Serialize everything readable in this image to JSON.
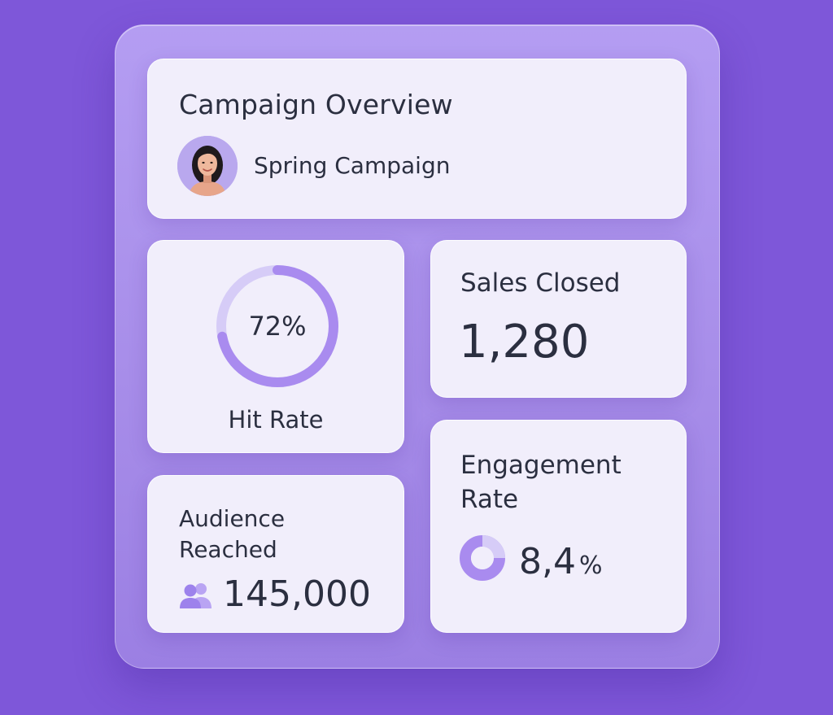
{
  "colors": {
    "background": "#7e57d9",
    "accent": "#a98bef",
    "accent_light": "#d6ccf7",
    "text": "#2b2f40"
  },
  "overview": {
    "title": "Campaign Overview",
    "campaign_name": "Spring Campaign",
    "avatar_icon": "person-avatar"
  },
  "hit_rate": {
    "value_text": "72%",
    "fraction": 0.72,
    "label": "Hit Rate"
  },
  "sales_closed": {
    "label": "Sales Closed",
    "value": "1,280"
  },
  "audience": {
    "label": "Audience Reached",
    "value": "145,000",
    "icon": "people-icon"
  },
  "engagement": {
    "label": "Engagement Rate",
    "value": "8,4",
    "unit": "%",
    "icon": "donut-icon"
  }
}
